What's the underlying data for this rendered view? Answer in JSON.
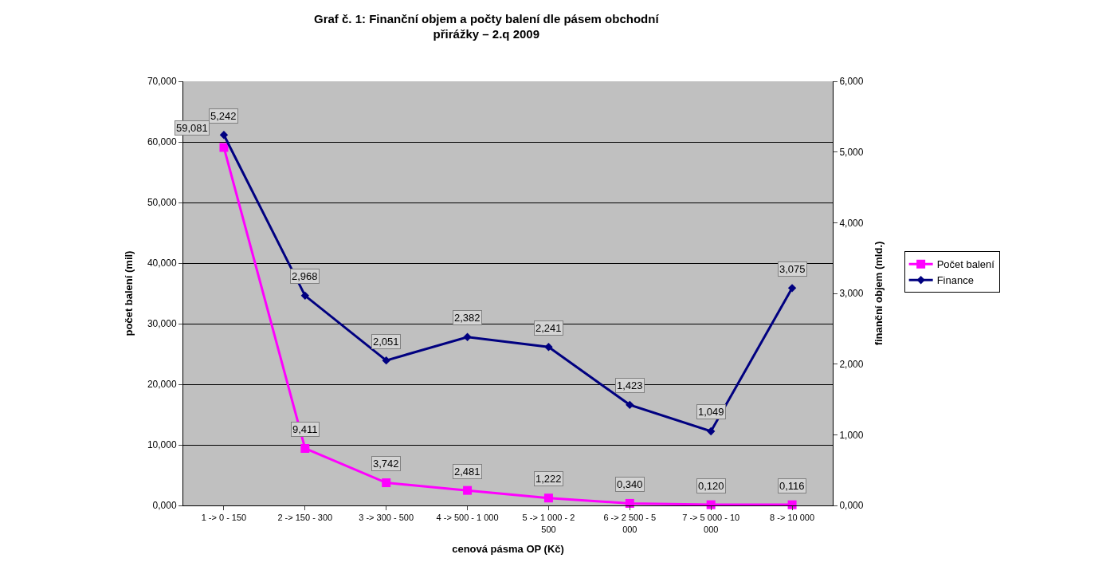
{
  "chart_data": {
    "type": "line",
    "title": "Graf č. 1: Finanční objem a počty balení dle pásem obchodní přirážky – 2.q 2009",
    "xlabel": "cenová pásma OP (Kč)",
    "ylabel": "počet balení (mil)",
    "y2label": "finanční objem (mld.)",
    "categories": [
      "1 -> 0 - 150",
      "2 -> 150 - 300",
      "3 -> 300 - 500",
      "4 -> 500 - 1 000",
      "5 -> 1 000 - 2 500",
      "6 -> 2 500 - 5 000",
      "7 -> 5 000 - 10 000",
      "8 -> 10 000"
    ],
    "series": [
      {
        "name": "Počet balení",
        "color": "#ff00ff",
        "marker": "square",
        "values": [
          59.081,
          9.411,
          3.742,
          2.481,
          1.222,
          0.34,
          0.12,
          0.116
        ],
        "value_labels": [
          "59,081",
          "9,411",
          "3,742",
          "2,481",
          "1,222",
          "0,340",
          "0,120",
          "0,116"
        ]
      },
      {
        "name": "Finance",
        "color": "#000080",
        "marker": "diamond",
        "axis": "y2",
        "values": [
          5.242,
          2.968,
          2.051,
          2.382,
          2.241,
          1.423,
          1.049,
          3.075
        ],
        "value_labels": [
          "5,242",
          "2,968",
          "2,051",
          "2,382",
          "2,241",
          "1,423",
          "1,049",
          "3,075"
        ]
      }
    ],
    "ylim": [
      0,
      70
    ],
    "yticks": [
      {
        "value": 0,
        "label": "0,000"
      },
      {
        "value": 10,
        "label": "10,000"
      },
      {
        "value": 20,
        "label": "20,000"
      },
      {
        "value": 30,
        "label": "30,000"
      },
      {
        "value": 40,
        "label": "40,000"
      },
      {
        "value": 50,
        "label": "50,000"
      },
      {
        "value": 60,
        "label": "60,000"
      },
      {
        "value": 70,
        "label": "70,000"
      }
    ],
    "y2lim": [
      0,
      6
    ],
    "y2ticks": [
      {
        "value": 0,
        "label": "0,000"
      },
      {
        "value": 1,
        "label": "1,000"
      },
      {
        "value": 2,
        "label": "2,000"
      },
      {
        "value": 3,
        "label": "3,000"
      },
      {
        "value": 4,
        "label": "4,000"
      },
      {
        "value": 5,
        "label": "5,000"
      },
      {
        "value": 6,
        "label": "6,000"
      }
    ],
    "grid": "y",
    "legend": "right",
    "line_style": "solid"
  }
}
